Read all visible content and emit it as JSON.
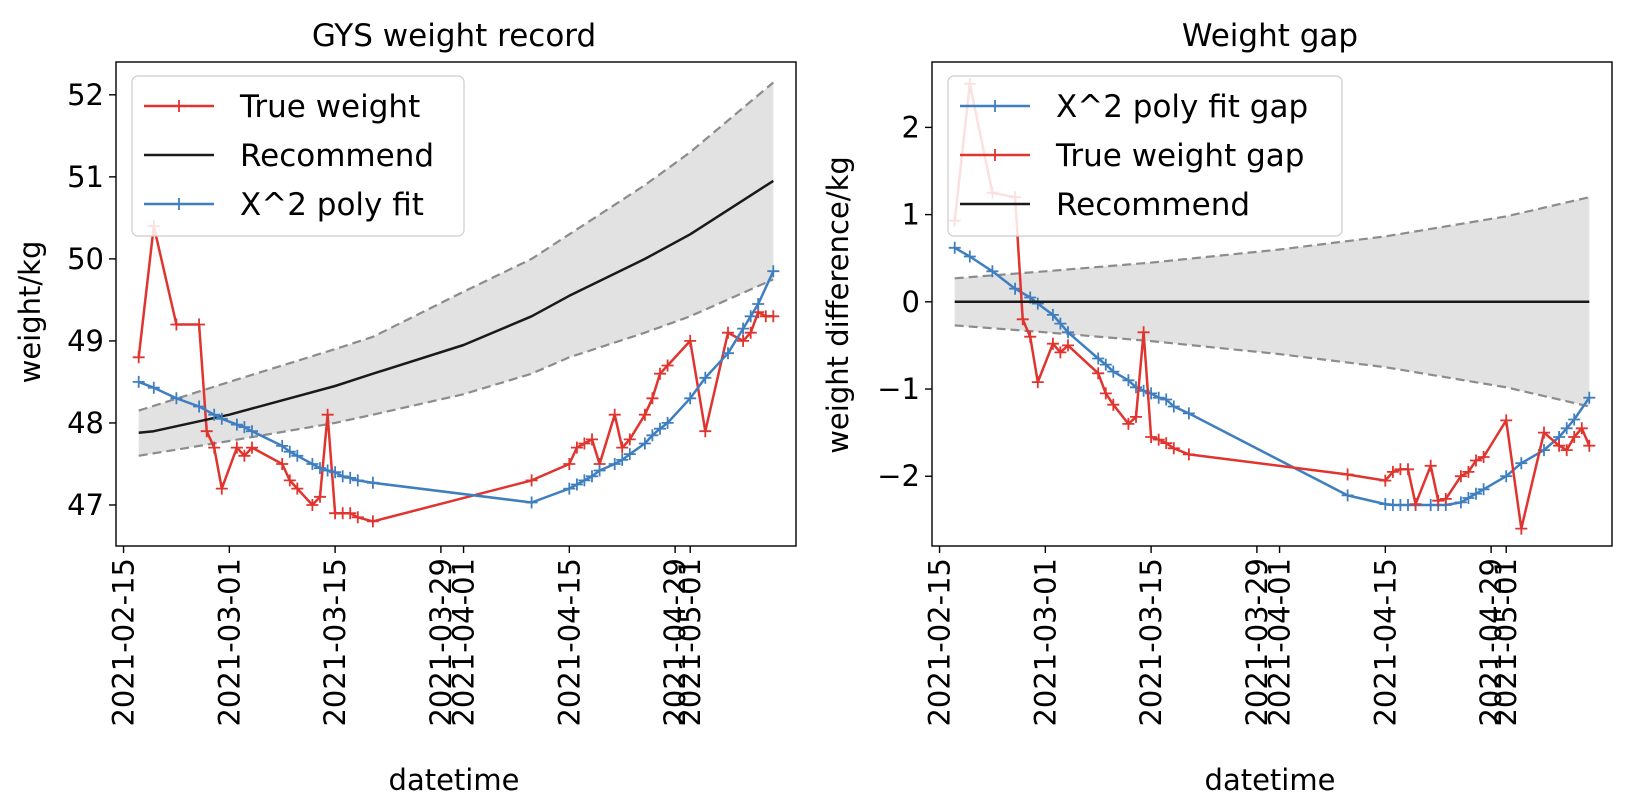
{
  "chart_data": [
    {
      "type": "line",
      "title": "GYS weight record",
      "xlabel": "datetime",
      "ylabel": "weight/kg",
      "x_type": "date",
      "xlim": [
        "2021-02-14",
        "2021-05-15"
      ],
      "ylim": [
        46.5,
        52.4
      ],
      "x_ticks": [
        "2021-02-15",
        "2021-03-01",
        "2021-03-15",
        "2021-03-29",
        "2021-04-01",
        "2021-04-15",
        "2021-04-29",
        "2021-05-01"
      ],
      "y_ticks": [
        47,
        48,
        49,
        50,
        51,
        52
      ],
      "grid": false,
      "legend_position": "upper left",
      "legend": [
        "True weight",
        "Recommend",
        "X^2 poly fit"
      ],
      "band": {
        "x": [
          "2021-02-17",
          "2021-03-01",
          "2021-03-15",
          "2021-03-20",
          "2021-04-01",
          "2021-04-10",
          "2021-04-15",
          "2021-04-25",
          "2021-05-01",
          "2021-05-12"
        ],
        "upper": [
          48.15,
          48.5,
          48.9,
          49.05,
          49.6,
          50.0,
          50.3,
          50.9,
          51.3,
          52.15
        ],
        "lower": [
          47.6,
          47.78,
          48.0,
          48.1,
          48.35,
          48.6,
          48.8,
          49.1,
          49.3,
          49.75
        ]
      },
      "series": [
        {
          "name": "True weight",
          "color": "#e0342f",
          "marker": "+",
          "x": [
            "2021-02-17",
            "2021-02-19",
            "2021-02-22",
            "2021-02-25",
            "2021-02-26",
            "2021-02-27",
            "2021-02-28",
            "2021-03-02",
            "2021-03-03",
            "2021-03-04",
            "2021-03-08",
            "2021-03-09",
            "2021-03-10",
            "2021-03-12",
            "2021-03-13",
            "2021-03-14",
            "2021-03-15",
            "2021-03-16",
            "2021-03-17",
            "2021-03-18",
            "2021-03-20",
            "2021-04-10",
            "2021-04-15",
            "2021-04-16",
            "2021-04-17",
            "2021-04-18",
            "2021-04-19",
            "2021-04-21",
            "2021-04-22",
            "2021-04-23",
            "2021-04-25",
            "2021-04-26",
            "2021-04-27",
            "2021-04-28",
            "2021-05-01",
            "2021-05-03",
            "2021-05-06",
            "2021-05-08",
            "2021-05-09",
            "2021-05-10",
            "2021-05-11",
            "2021-05-12"
          ],
          "values": [
            48.8,
            50.4,
            49.2,
            49.2,
            47.9,
            47.7,
            47.2,
            47.7,
            47.6,
            47.7,
            47.5,
            47.3,
            47.2,
            47.0,
            47.1,
            48.1,
            46.9,
            46.9,
            46.9,
            46.85,
            46.8,
            47.3,
            47.5,
            47.7,
            47.75,
            47.8,
            47.5,
            48.1,
            47.7,
            47.8,
            48.1,
            48.3,
            48.6,
            48.7,
            49.0,
            47.9,
            49.1,
            49.0,
            49.1,
            49.35,
            49.3,
            49.3
          ]
        },
        {
          "name": "Recommend",
          "color": "#1a1a1a",
          "x": [
            "2021-02-17",
            "2021-02-19",
            "2021-03-01",
            "2021-03-15",
            "2021-03-20",
            "2021-04-01",
            "2021-04-10",
            "2021-04-15",
            "2021-04-25",
            "2021-05-01",
            "2021-05-12"
          ],
          "values": [
            47.88,
            47.9,
            48.1,
            48.45,
            48.6,
            48.95,
            49.3,
            49.55,
            50.0,
            50.3,
            50.95
          ]
        },
        {
          "name": "X^2 poly fit",
          "color": "#3f7fbf",
          "marker": "+",
          "x": [
            "2021-02-17",
            "2021-02-19",
            "2021-02-22",
            "2021-02-25",
            "2021-02-27",
            "2021-02-28",
            "2021-03-02",
            "2021-03-03",
            "2021-03-04",
            "2021-03-08",
            "2021-03-09",
            "2021-03-10",
            "2021-03-12",
            "2021-03-13",
            "2021-03-14",
            "2021-03-15",
            "2021-03-16",
            "2021-03-17",
            "2021-03-18",
            "2021-03-20",
            "2021-04-10",
            "2021-04-15",
            "2021-04-16",
            "2021-04-17",
            "2021-04-18",
            "2021-04-19",
            "2021-04-21",
            "2021-04-22",
            "2021-04-23",
            "2021-04-25",
            "2021-04-26",
            "2021-04-27",
            "2021-04-28",
            "2021-05-01",
            "2021-05-03",
            "2021-05-06",
            "2021-05-08",
            "2021-05-09",
            "2021-05-10",
            "2021-05-12"
          ],
          "values": [
            48.5,
            48.43,
            48.3,
            48.2,
            48.1,
            48.05,
            47.98,
            47.95,
            47.9,
            47.72,
            47.65,
            47.6,
            47.5,
            47.45,
            47.42,
            47.4,
            47.35,
            47.33,
            47.3,
            47.27,
            47.03,
            47.2,
            47.25,
            47.3,
            47.35,
            47.42,
            47.5,
            47.55,
            47.62,
            47.75,
            47.85,
            47.93,
            48.0,
            48.3,
            48.55,
            48.85,
            49.15,
            49.3,
            49.45,
            49.85
          ]
        }
      ]
    },
    {
      "type": "line",
      "title": "Weight gap",
      "xlabel": "datetime",
      "ylabel": "weight difference/kg",
      "x_type": "date",
      "xlim": [
        "2021-02-14",
        "2021-05-15"
      ],
      "ylim": [
        -2.8,
        2.75
      ],
      "x_ticks": [
        "2021-02-15",
        "2021-03-01",
        "2021-03-15",
        "2021-03-29",
        "2021-04-01",
        "2021-04-15",
        "2021-04-29",
        "2021-05-01"
      ],
      "y_ticks": [
        -2,
        -1,
        0,
        1,
        2
      ],
      "grid": false,
      "legend_position": "upper left",
      "legend": [
        "X^2 poly fit gap",
        "True weight gap",
        "Recommend"
      ],
      "band": {
        "x": [
          "2021-02-17",
          "2021-03-01",
          "2021-03-15",
          "2021-04-01",
          "2021-04-15",
          "2021-05-01",
          "2021-05-12"
        ],
        "upper": [
          0.27,
          0.35,
          0.45,
          0.6,
          0.75,
          0.98,
          1.2
        ],
        "lower": [
          -0.27,
          -0.35,
          -0.45,
          -0.6,
          -0.75,
          -0.98,
          -1.2
        ]
      },
      "series": [
        {
          "name": "X^2 poly fit gap",
          "color": "#3f7fbf",
          "marker": "+",
          "x": [
            "2021-02-17",
            "2021-02-19",
            "2021-02-22",
            "2021-02-25",
            "2021-02-27",
            "2021-02-28",
            "2021-03-02",
            "2021-03-03",
            "2021-03-04",
            "2021-03-08",
            "2021-03-09",
            "2021-03-10",
            "2021-03-12",
            "2021-03-13",
            "2021-03-14",
            "2021-03-15",
            "2021-03-16",
            "2021-03-17",
            "2021-03-18",
            "2021-03-20",
            "2021-04-10",
            "2021-04-15",
            "2021-04-16",
            "2021-04-17",
            "2021-04-18",
            "2021-04-19",
            "2021-04-21",
            "2021-04-22",
            "2021-04-23",
            "2021-04-25",
            "2021-04-26",
            "2021-04-27",
            "2021-04-28",
            "2021-05-01",
            "2021-05-03",
            "2021-05-06",
            "2021-05-08",
            "2021-05-09",
            "2021-05-10",
            "2021-05-12"
          ],
          "values": [
            0.62,
            0.52,
            0.35,
            0.15,
            0.05,
            -0.02,
            -0.15,
            -0.25,
            -0.35,
            -0.65,
            -0.72,
            -0.8,
            -0.9,
            -0.98,
            -1.02,
            -1.05,
            -1.1,
            -1.12,
            -1.2,
            -1.28,
            -2.22,
            -2.32,
            -2.33,
            -2.33,
            -2.33,
            -2.33,
            -2.33,
            -2.33,
            -2.33,
            -2.3,
            -2.25,
            -2.2,
            -2.15,
            -2.0,
            -1.85,
            -1.7,
            -1.55,
            -1.45,
            -1.35,
            -1.1
          ]
        },
        {
          "name": "True weight gap",
          "color": "#e0342f",
          "marker": "+",
          "x": [
            "2021-02-17",
            "2021-02-19",
            "2021-02-22",
            "2021-02-25",
            "2021-02-26",
            "2021-02-27",
            "2021-02-28",
            "2021-03-02",
            "2021-03-03",
            "2021-03-04",
            "2021-03-08",
            "2021-03-09",
            "2021-03-10",
            "2021-03-12",
            "2021-03-13",
            "2021-03-14",
            "2021-03-15",
            "2021-03-16",
            "2021-03-17",
            "2021-03-18",
            "2021-03-20",
            "2021-04-10",
            "2021-04-15",
            "2021-04-16",
            "2021-04-17",
            "2021-04-18",
            "2021-04-19",
            "2021-04-21",
            "2021-04-22",
            "2021-04-23",
            "2021-04-25",
            "2021-04-26",
            "2021-04-27",
            "2021-04-28",
            "2021-05-01",
            "2021-05-03",
            "2021-05-06",
            "2021-05-08",
            "2021-05-09",
            "2021-05-10",
            "2021-05-11",
            "2021-05-12"
          ],
          "values": [
            0.93,
            2.5,
            1.25,
            1.2,
            -0.2,
            -0.4,
            -0.92,
            -0.48,
            -0.58,
            -0.5,
            -0.82,
            -1.05,
            -1.18,
            -1.4,
            -1.32,
            -0.35,
            -1.55,
            -1.58,
            -1.62,
            -1.68,
            -1.75,
            -1.98,
            -2.05,
            -1.95,
            -1.92,
            -1.92,
            -2.32,
            -1.88,
            -2.28,
            -2.26,
            -2.0,
            -1.95,
            -1.82,
            -1.78,
            -1.36,
            -2.6,
            -1.5,
            -1.65,
            -1.7,
            -1.55,
            -1.45,
            -1.65
          ]
        },
        {
          "name": "Recommend",
          "color": "#1a1a1a",
          "x": [
            "2021-02-17",
            "2021-05-12"
          ],
          "values": [
            0,
            0
          ]
        }
      ]
    }
  ]
}
